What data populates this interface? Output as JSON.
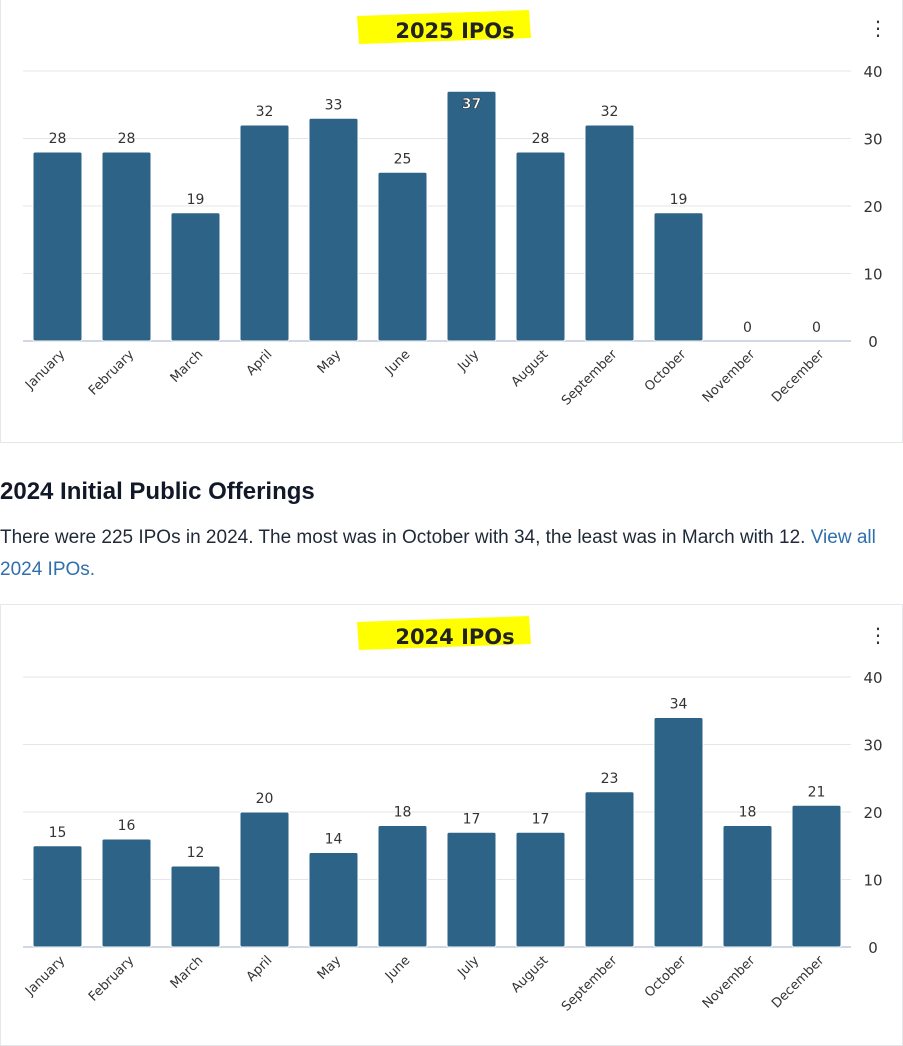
{
  "chart_data": [
    {
      "type": "bar",
      "title": "2025 IPOs",
      "categories": [
        "January",
        "February",
        "March",
        "April",
        "May",
        "June",
        "July",
        "August",
        "September",
        "October",
        "November",
        "December"
      ],
      "values": [
        28,
        28,
        19,
        32,
        33,
        25,
        37,
        28,
        32,
        19,
        0,
        0
      ],
      "ylim": [
        0,
        40
      ],
      "yticks": [
        0,
        10,
        20,
        30,
        40
      ],
      "xlabel": "",
      "ylabel": "",
      "grid": true,
      "y_axis_side": "right",
      "bar_color": "#2d6386",
      "title_highlight": "#ffff00"
    },
    {
      "type": "bar",
      "title": "2024 IPOs",
      "categories": [
        "January",
        "February",
        "March",
        "April",
        "May",
        "June",
        "July",
        "August",
        "September",
        "October",
        "November",
        "December"
      ],
      "values": [
        15,
        16,
        12,
        20,
        14,
        18,
        17,
        17,
        23,
        34,
        18,
        21
      ],
      "ylim": [
        0,
        40
      ],
      "yticks": [
        0,
        10,
        20,
        30,
        40
      ],
      "xlabel": "",
      "ylabel": "",
      "grid": true,
      "y_axis_side": "right",
      "bar_color": "#2d6386",
      "title_highlight": "#ffff00"
    }
  ],
  "section": {
    "heading": "2024 Initial Public Offerings",
    "text": "There were 225 IPOs in 2024. The most was in October with 34, the least was in March with 12. ",
    "link": "View all 2024 IPOs."
  },
  "menu_icon": "⋮"
}
